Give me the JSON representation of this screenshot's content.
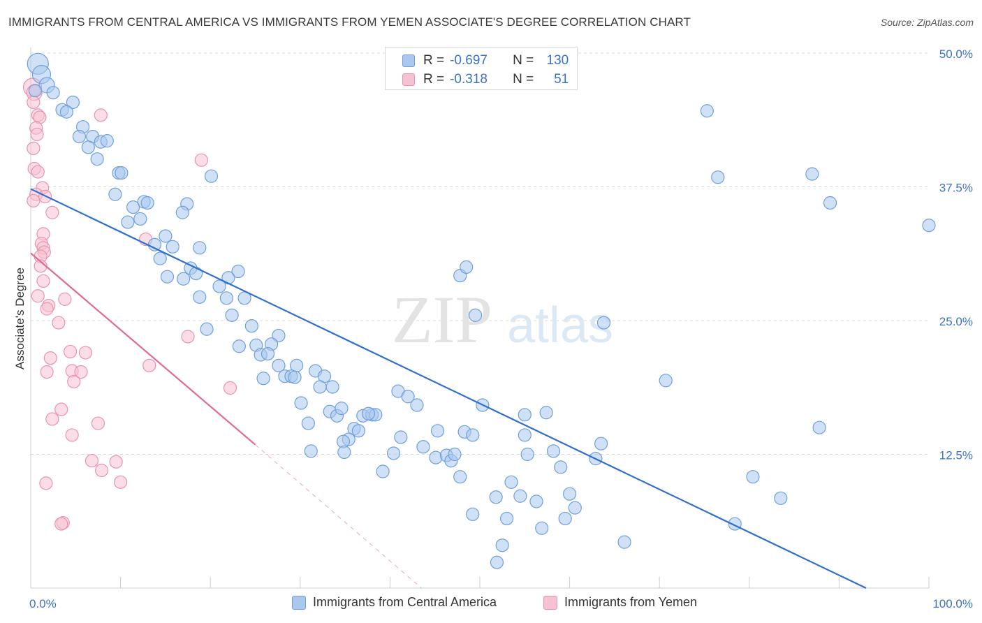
{
  "title": "IMMIGRANTS FROM CENTRAL AMERICA VS IMMIGRANTS FROM YEMEN ASSOCIATE'S DEGREE CORRELATION CHART",
  "source": "Source: ZipAtlas.com",
  "watermark": {
    "zip": "ZIP",
    "atlas": "atlas"
  },
  "colors": {
    "blue_fill": "#aac8ee",
    "blue_stroke": "#6f9fdc",
    "blue_line": "#2f6fce",
    "pink_fill": "#f6c1d2",
    "pink_stroke": "#e993ae",
    "pink_line": "#e26a92",
    "value_text": "#3c72c8",
    "grid": "#d9d9d9"
  },
  "legend": {
    "rows": [
      {
        "r_label": "R =",
        "r_value": "-0.697",
        "n_label": "N =",
        "n_value": "130"
      },
      {
        "r_label": "R =",
        "r_value": "-0.318",
        "n_label": "N =",
        "n_value": "51"
      }
    ]
  },
  "chart_data": {
    "type": "scatter",
    "xlabel": "",
    "ylabel": "Associate's Degree",
    "xlim": [
      0,
      100
    ],
    "ylim": [
      0,
      50
    ],
    "x_tick_labels": [
      {
        "value": 0,
        "label": "0.0%"
      },
      {
        "value": 100,
        "label": "100.0%"
      }
    ],
    "y_tick_labels": [
      {
        "value": 12.5,
        "label": "12.5%"
      },
      {
        "value": 25,
        "label": "25.0%"
      },
      {
        "value": 37.5,
        "label": "37.5%"
      },
      {
        "value": 50,
        "label": "50.0%"
      }
    ],
    "grid": true,
    "legend_position": "top-center",
    "series": [
      {
        "name": "Immigrants from Central America",
        "color": "#aac8ee",
        "trend": {
          "x": [
            0,
            93
          ],
          "y": [
            37.3,
            -0.3
          ]
        },
        "points": [
          [
            0.8,
            49
          ],
          [
            1.2,
            48
          ],
          [
            1.8,
            47
          ],
          [
            0.5,
            46.5
          ],
          [
            2.5,
            46.3
          ],
          [
            4.7,
            45.4
          ],
          [
            3.5,
            44.7
          ],
          [
            4,
            44.5
          ],
          [
            5.8,
            43.1
          ],
          [
            5.4,
            42.2
          ],
          [
            6.9,
            42.2
          ],
          [
            7.8,
            41.7
          ],
          [
            8.5,
            41.8
          ],
          [
            6.4,
            41.2
          ],
          [
            7.4,
            40.1
          ],
          [
            9.8,
            38.8
          ],
          [
            10.1,
            38.8
          ],
          [
            20.1,
            38.5
          ],
          [
            9.4,
            36.8
          ],
          [
            12.6,
            36.1
          ],
          [
            13,
            36
          ],
          [
            11.4,
            35.6
          ],
          [
            17.4,
            35.9
          ],
          [
            16.9,
            35.1
          ],
          [
            12.2,
            34.5
          ],
          [
            10.8,
            34.2
          ],
          [
            15,
            32.9
          ],
          [
            13.8,
            32.1
          ],
          [
            15.8,
            31.9
          ],
          [
            18.8,
            31.8
          ],
          [
            14.4,
            30.8
          ],
          [
            17.8,
            29.9
          ],
          [
            18.4,
            29.4
          ],
          [
            23.1,
            29.6
          ],
          [
            22,
            29
          ],
          [
            15.2,
            29.1
          ],
          [
            17,
            28.9
          ],
          [
            21,
            28.2
          ],
          [
            18.8,
            27.2
          ],
          [
            21.8,
            27.1
          ],
          [
            23.8,
            27.1
          ],
          [
            22.4,
            25.5
          ],
          [
            24.6,
            24.5
          ],
          [
            19.6,
            24.2
          ],
          [
            27.6,
            23.6
          ],
          [
            25.1,
            22.7
          ],
          [
            23.2,
            22.6
          ],
          [
            26.8,
            22.8
          ],
          [
            25.6,
            21.8
          ],
          [
            26.4,
            21.9
          ],
          [
            27.6,
            20.8
          ],
          [
            29.6,
            20.8
          ],
          [
            25.9,
            19.6
          ],
          [
            28.3,
            19.8
          ],
          [
            29,
            19.8
          ],
          [
            29.4,
            19.7
          ],
          [
            31.7,
            20.3
          ],
          [
            32.7,
            19.8
          ],
          [
            32.2,
            18.8
          ],
          [
            33.6,
            18.8
          ],
          [
            30.1,
            17.3
          ],
          [
            30.9,
            15.4
          ],
          [
            33.3,
            16.5
          ],
          [
            34.1,
            16.1
          ],
          [
            34.6,
            16.8
          ],
          [
            37,
            16.1
          ],
          [
            38,
            16.2
          ],
          [
            38.4,
            16.2
          ],
          [
            37.6,
            16.3
          ],
          [
            36,
            14.9
          ],
          [
            35.4,
            13.9
          ],
          [
            36.5,
            14.7
          ],
          [
            34.8,
            13.7
          ],
          [
            31.2,
            12.8
          ],
          [
            34.9,
            12.7
          ],
          [
            40.9,
            18.4
          ],
          [
            42,
            17.9
          ],
          [
            43,
            17.1
          ],
          [
            45.3,
            14.7
          ],
          [
            45.1,
            12.2
          ],
          [
            43.7,
            13.2
          ],
          [
            40.4,
            12.6
          ],
          [
            41.2,
            14.1
          ],
          [
            46.3,
            12.4
          ],
          [
            46.8,
            11.9
          ],
          [
            47.2,
            12.5
          ],
          [
            47.8,
            10.4
          ],
          [
            39.2,
            10.9
          ],
          [
            48.3,
            14.6
          ],
          [
            49.2,
            14.3
          ],
          [
            49.2,
            6.9
          ],
          [
            50.3,
            17.1
          ],
          [
            55,
            16.2
          ],
          [
            55,
            14.3
          ],
          [
            55.3,
            12.5
          ],
          [
            53.5,
            9.9
          ],
          [
            51.8,
            8.5
          ],
          [
            53,
            6.5
          ],
          [
            54.5,
            8.6
          ],
          [
            56.3,
            8.1
          ],
          [
            58.2,
            12.8
          ],
          [
            57.4,
            16.4
          ],
          [
            56.9,
            5.6
          ],
          [
            59,
            11.3
          ],
          [
            59.5,
            6.5
          ],
          [
            60,
            8.8
          ],
          [
            60.6,
            7.5
          ],
          [
            52.5,
            4
          ],
          [
            51.9,
            2.4
          ],
          [
            63.5,
            13.5
          ],
          [
            62.9,
            12.1
          ],
          [
            63.8,
            24.8
          ],
          [
            66.1,
            4.3
          ],
          [
            70.7,
            19.4
          ],
          [
            75.3,
            44.6
          ],
          [
            76.5,
            38.4
          ],
          [
            87,
            38.7
          ],
          [
            89,
            36
          ],
          [
            80.4,
            10.4
          ],
          [
            83.5,
            8.4
          ],
          [
            78.4,
            6
          ],
          [
            87.8,
            15
          ],
          [
            100,
            33.9
          ],
          [
            49.5,
            25.5
          ],
          [
            47.8,
            29.2
          ],
          [
            48.5,
            30
          ]
        ]
      },
      {
        "name": "Immigrants from Yemen",
        "color": "#f6c1d2",
        "trend": {
          "x": [
            0,
            25
          ],
          "y": [
            31.3,
            13.4
          ],
          "dashed_to": {
            "x": 43.5,
            "y": 0
          }
        },
        "points": [
          [
            0.2,
            46.8
          ],
          [
            0.4,
            46.3
          ],
          [
            0.3,
            45.4
          ],
          [
            0.8,
            44.2
          ],
          [
            1,
            44
          ],
          [
            0.6,
            43
          ],
          [
            0.7,
            42.4
          ],
          [
            0.3,
            41.1
          ],
          [
            0.4,
            39.2
          ],
          [
            0.8,
            38.9
          ],
          [
            1.3,
            37.4
          ],
          [
            0.6,
            36.8
          ],
          [
            0.3,
            36.2
          ],
          [
            1.6,
            36.6
          ],
          [
            2.4,
            35.1
          ],
          [
            1.4,
            33.1
          ],
          [
            1.2,
            32.2
          ],
          [
            1.4,
            31.8
          ],
          [
            1.5,
            31.4
          ],
          [
            1.1,
            31
          ],
          [
            1.1,
            30.1
          ],
          [
            1.4,
            28.7
          ],
          [
            0.8,
            27.3
          ],
          [
            2,
            26.4
          ],
          [
            1.8,
            26.1
          ],
          [
            3.8,
            27
          ],
          [
            3.1,
            24.8
          ],
          [
            2.2,
            21.5
          ],
          [
            1.8,
            20.2
          ],
          [
            4.4,
            22.1
          ],
          [
            2.4,
            15.8
          ],
          [
            3.4,
            16.7
          ],
          [
            4.6,
            20.3
          ],
          [
            4.8,
            19.3
          ],
          [
            4.6,
            14.3
          ],
          [
            5.6,
            20.2
          ],
          [
            6.1,
            22
          ],
          [
            7.5,
            15.4
          ],
          [
            6.8,
            11.9
          ],
          [
            7.9,
            11
          ],
          [
            9.5,
            11.8
          ],
          [
            10,
            9.9
          ],
          [
            1.7,
            9.8
          ],
          [
            3.6,
            6.1
          ],
          [
            3.4,
            6
          ],
          [
            7.8,
            44.2
          ],
          [
            19,
            40
          ],
          [
            12.8,
            32.6
          ],
          [
            13.2,
            20.8
          ],
          [
            17.5,
            23.5
          ],
          [
            22.2,
            18.7
          ]
        ]
      }
    ]
  }
}
